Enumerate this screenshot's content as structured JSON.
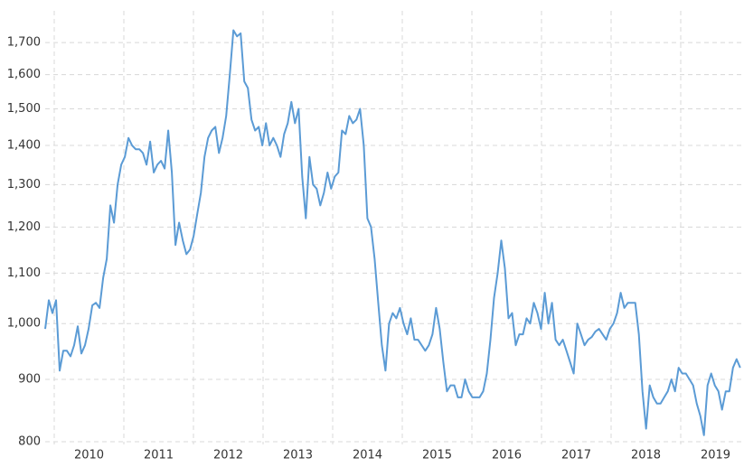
{
  "chart_data": {
    "type": "line",
    "color": "#5b9bd5",
    "ylog": true,
    "grid": true,
    "xlim": [
      2009.87,
      2019.87
    ],
    "ylim": [
      796,
      1805
    ],
    "xticks": [
      2010,
      2011,
      2012,
      2013,
      2014,
      2015,
      2016,
      2017,
      2018,
      2019
    ],
    "yticks": [
      800,
      900,
      {
        "value": 1000,
        "label": "1,000"
      },
      {
        "value": 1100,
        "label": "1,100"
      },
      {
        "value": 1200,
        "label": "1,200"
      },
      {
        "value": 1300,
        "label": "1,300"
      },
      {
        "value": 1400,
        "label": "1,400"
      },
      {
        "value": 1500,
        "label": "1,500"
      },
      {
        "value": 1600,
        "label": "1,600"
      },
      {
        "value": 1700,
        "label": "1,700"
      }
    ],
    "x": [
      2009.87,
      2009.922,
      2009.974,
      2010.026,
      2010.078,
      2010.13,
      2010.182,
      2010.234,
      2010.286,
      2010.338,
      2010.39,
      2010.442,
      2010.494,
      2010.546,
      2010.598,
      2010.65,
      2010.702,
      2010.754,
      2010.806,
      2010.858,
      2010.91,
      2010.962,
      2011.014,
      2011.066,
      2011.118,
      2011.17,
      2011.222,
      2011.274,
      2011.326,
      2011.378,
      2011.43,
      2011.482,
      2011.534,
      2011.586,
      2011.638,
      2011.69,
      2011.742,
      2011.794,
      2011.846,
      2011.898,
      2011.95,
      2012.002,
      2012.054,
      2012.106,
      2012.158,
      2012.21,
      2012.262,
      2012.314,
      2012.366,
      2012.418,
      2012.47,
      2012.522,
      2012.574,
      2012.626,
      2012.678,
      2012.73,
      2012.782,
      2012.834,
      2012.886,
      2012.938,
      2012.99,
      2013.042,
      2013.094,
      2013.146,
      2013.198,
      2013.25,
      2013.302,
      2013.354,
      2013.406,
      2013.458,
      2013.51,
      2013.562,
      2013.614,
      2013.666,
      2013.718,
      2013.77,
      2013.822,
      2013.874,
      2013.926,
      2013.978,
      2014.03,
      2014.082,
      2014.134,
      2014.186,
      2014.238,
      2014.29,
      2014.342,
      2014.394,
      2014.446,
      2014.498,
      2014.55,
      2014.602,
      2014.654,
      2014.706,
      2014.758,
      2014.81,
      2014.862,
      2014.914,
      2014.966,
      2015.018,
      2015.07,
      2015.122,
      2015.174,
      2015.226,
      2015.278,
      2015.33,
      2015.382,
      2015.434,
      2015.486,
      2015.538,
      2015.59,
      2015.642,
      2015.694,
      2015.746,
      2015.798,
      2015.85,
      2015.902,
      2015.954,
      2016.006,
      2016.058,
      2016.11,
      2016.162,
      2016.214,
      2016.266,
      2016.318,
      2016.37,
      2016.422,
      2016.474,
      2016.526,
      2016.578,
      2016.63,
      2016.682,
      2016.734,
      2016.786,
      2016.838,
      2016.89,
      2016.942,
      2016.994,
      2017.046,
      2017.098,
      2017.15,
      2017.202,
      2017.254,
      2017.306,
      2017.358,
      2017.41,
      2017.462,
      2017.514,
      2017.566,
      2017.618,
      2017.67,
      2017.722,
      2017.774,
      2017.826,
      2017.878,
      2017.93,
      2017.982,
      2018.034,
      2018.086,
      2018.138,
      2018.19,
      2018.242,
      2018.294,
      2018.346,
      2018.398,
      2018.45,
      2018.502,
      2018.554,
      2018.606,
      2018.658,
      2018.71,
      2018.762,
      2018.814,
      2018.866,
      2018.918,
      2018.97,
      2019.022,
      2019.074,
      2019.126,
      2019.178,
      2019.23,
      2019.282,
      2019.334,
      2019.386,
      2019.438,
      2019.49,
      2019.542,
      2019.594,
      2019.646,
      2019.698,
      2019.75,
      2019.802,
      2019.854
    ],
    "values": [
      990,
      1045,
      1020,
      1045,
      915,
      950,
      950,
      940,
      960,
      995,
      945,
      960,
      990,
      1035,
      1040,
      1030,
      1090,
      1130,
      1250,
      1210,
      1300,
      1350,
      1370,
      1420,
      1400,
      1390,
      1390,
      1380,
      1350,
      1410,
      1330,
      1350,
      1360,
      1340,
      1440,
      1330,
      1160,
      1210,
      1170,
      1140,
      1150,
      1180,
      1230,
      1280,
      1370,
      1420,
      1440,
      1450,
      1380,
      1420,
      1480,
      1600,
      1740,
      1720,
      1730,
      1580,
      1560,
      1470,
      1440,
      1450,
      1400,
      1460,
      1400,
      1420,
      1400,
      1370,
      1430,
      1460,
      1520,
      1460,
      1500,
      1320,
      1220,
      1370,
      1300,
      1290,
      1250,
      1280,
      1330,
      1290,
      1320,
      1330,
      1440,
      1430,
      1480,
      1460,
      1470,
      1500,
      1400,
      1220,
      1200,
      1130,
      1040,
      960,
      915,
      1000,
      1020,
      1010,
      1030,
      1000,
      980,
      1010,
      970,
      970,
      960,
      950,
      960,
      980,
      1030,
      990,
      930,
      880,
      890,
      890,
      870,
      870,
      900,
      880,
      870,
      870,
      870,
      880,
      910,
      970,
      1050,
      1100,
      1170,
      1110,
      1010,
      1020,
      960,
      980,
      980,
      1010,
      1000,
      1040,
      1020,
      990,
      1060,
      1000,
      1040,
      970,
      960,
      970,
      950,
      930,
      910,
      1000,
      980,
      960,
      970,
      975,
      985,
      990,
      980,
      970,
      990,
      1000,
      1020,
      1060,
      1030,
      1040,
      1040,
      1040,
      980,
      880,
      820,
      890,
      870,
      860,
      860,
      870,
      880,
      900,
      880,
      920,
      910,
      910,
      900,
      890,
      860,
      840,
      810,
      890,
      910,
      890,
      880,
      850,
      880,
      880,
      920,
      935,
      920
    ]
  }
}
